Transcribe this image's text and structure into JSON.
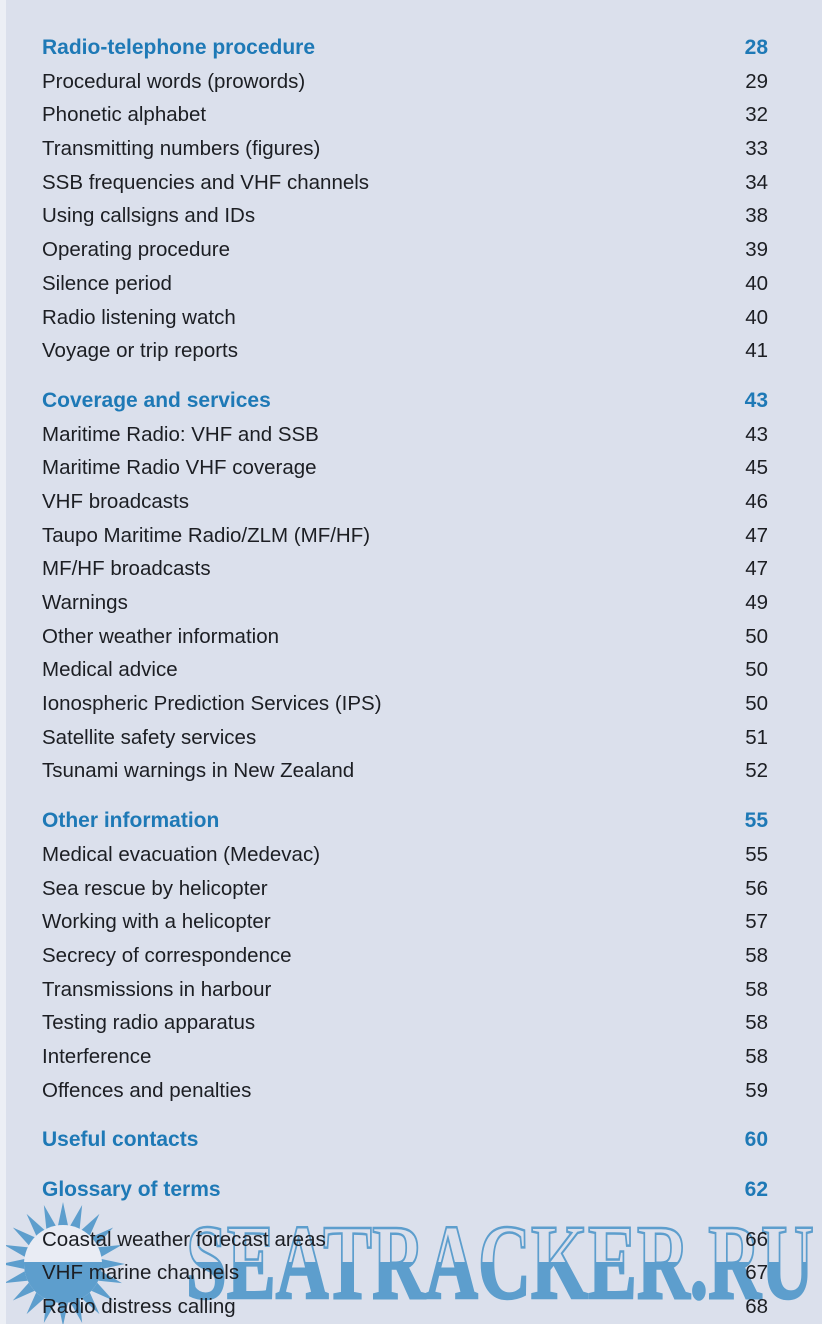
{
  "colors": {
    "background": "#dbe0ec",
    "accent_blue": "#1e79b6",
    "entry_text": "#1c1e23",
    "watermark_blue": "#5d9ecd",
    "star_face": "#e9ecf4",
    "left_edge": "#eceff5"
  },
  "toc": {
    "sections": [
      {
        "heading": "Radio-telephone procedure",
        "page": "28",
        "items": [
          {
            "label": "Procedural words (prowords)",
            "page": "29"
          },
          {
            "label": "Phonetic alphabet",
            "page": "32"
          },
          {
            "label": "Transmitting numbers (figures)",
            "page": "33"
          },
          {
            "label": "SSB frequencies and VHF channels",
            "page": "34"
          },
          {
            "label": "Using callsigns and IDs",
            "page": "38"
          },
          {
            "label": "Operating procedure",
            "page": "39"
          },
          {
            "label": "Silence period",
            "page": "40"
          },
          {
            "label": "Radio listening watch",
            "page": "40"
          },
          {
            "label": "Voyage or trip reports",
            "page": "41"
          }
        ]
      },
      {
        "heading": "Coverage and services",
        "page": "43",
        "items": [
          {
            "label": "Maritime Radio: VHF and SSB",
            "page": "43"
          },
          {
            "label": "Maritime Radio VHF coverage",
            "page": "45"
          },
          {
            "label": "VHF broadcasts",
            "page": "46"
          },
          {
            "label": "Taupo Maritime Radio/ZLM (MF/HF)",
            "page": "47"
          },
          {
            "label": "MF/HF broadcasts",
            "page": "47"
          },
          {
            "label": "Warnings",
            "page": "49"
          },
          {
            "label": "Other weather information",
            "page": "50"
          },
          {
            "label": "Medical advice",
            "page": "50"
          },
          {
            "label": "Ionospheric Prediction Services (IPS)",
            "page": "50"
          },
          {
            "label": "Satellite safety services",
            "page": "51"
          },
          {
            "label": "Tsunami warnings in New Zealand",
            "page": "52"
          }
        ]
      },
      {
        "heading": "Other information",
        "page": "55",
        "items": [
          {
            "label": "Medical evacuation (Medevac)",
            "page": "55"
          },
          {
            "label": "Sea rescue by helicopter",
            "page": "56"
          },
          {
            "label": "Working with a helicopter",
            "page": "57"
          },
          {
            "label": "Secrecy of correspondence",
            "page": "58"
          },
          {
            "label": "Transmissions in harbour",
            "page": "58"
          },
          {
            "label": "Testing radio apparatus",
            "page": "58"
          },
          {
            "label": "Interference",
            "page": "58"
          },
          {
            "label": "Offences and penalties",
            "page": "59"
          }
        ]
      },
      {
        "heading": "Useful contacts",
        "page": "60",
        "items": []
      },
      {
        "heading": "Glossary of terms",
        "page": "62",
        "items": []
      },
      {
        "heading": null,
        "page": null,
        "items": [
          {
            "label": "Coastal weather forecast areas",
            "page": "66"
          },
          {
            "label": "VHF marine channels",
            "page": "67"
          },
          {
            "label": "Radio distress calling",
            "page": "68"
          }
        ]
      }
    ]
  },
  "watermark": {
    "text": "SEATRACKER.RU",
    "icon": "sunburst-star-icon"
  }
}
